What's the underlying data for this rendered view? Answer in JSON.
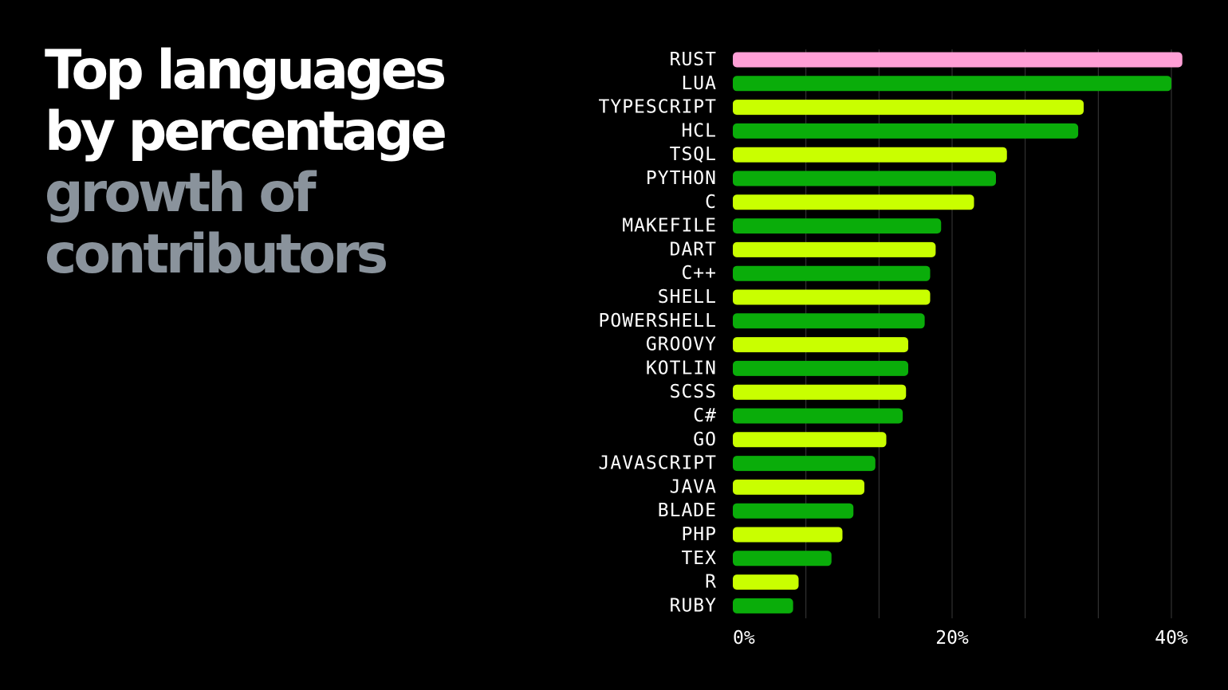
{
  "title": {
    "line1": "Top languages",
    "line2": "by percentage",
    "line3": "growth of",
    "line4": "contributors",
    "primary_color": "#ffffff",
    "secondary_color": "#8a939c"
  },
  "colors": {
    "highlight": "#ff9fd6",
    "dark_green": "#0aad0a",
    "lime": "#c9ff00",
    "gridline": "#3a3a3a",
    "background": "#000000"
  },
  "chart_data": {
    "type": "bar",
    "orientation": "horizontal",
    "title": "Top languages by percentage growth of contributors",
    "categories": [
      "RUST",
      "LUA",
      "TYPESCRIPT",
      "HCL",
      "TSQL",
      "PYTHON",
      "C",
      "MAKEFILE",
      "DART",
      "C++",
      "SHELL",
      "POWERSHELL",
      "GROOVY",
      "KOTLIN",
      "SCSS",
      "C#",
      "GO",
      "JAVASCRIPT",
      "JAVA",
      "BLADE",
      "PHP",
      "TEX",
      "R",
      "RUBY"
    ],
    "values": [
      41,
      40,
      32,
      31.5,
      25,
      24,
      22,
      19,
      18.5,
      18,
      18,
      17.5,
      16,
      16,
      15.8,
      15.5,
      14,
      13,
      12,
      11,
      10,
      9,
      6,
      5.5
    ],
    "bar_colors": [
      "highlight",
      "dark_green",
      "lime",
      "dark_green",
      "lime",
      "dark_green",
      "lime",
      "dark_green",
      "lime",
      "dark_green",
      "lime",
      "dark_green",
      "lime",
      "dark_green",
      "lime",
      "dark_green",
      "lime",
      "dark_green",
      "lime",
      "dark_green",
      "lime",
      "dark_green",
      "lime",
      "dark_green"
    ],
    "x_ticks": [
      "0%",
      "20%",
      "40%"
    ],
    "xlim": [
      0,
      40
    ],
    "grid": "vertical",
    "xlabel": "",
    "ylabel": ""
  }
}
